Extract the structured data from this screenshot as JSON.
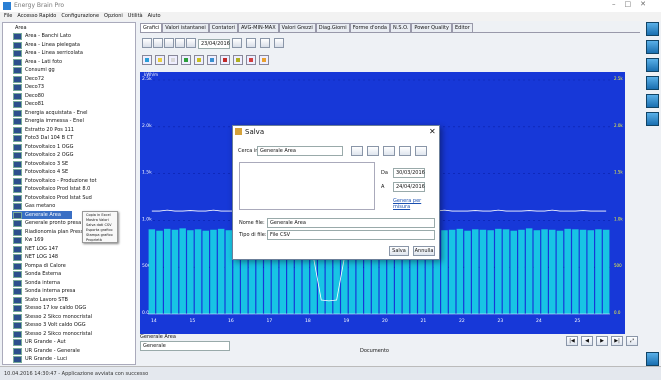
{
  "window": {
    "title": "Energy Brain Pro",
    "menu": [
      "File",
      "Accesso Rapido",
      "Configurazione",
      "Opzioni",
      "Utilità",
      "Aiuto"
    ]
  },
  "tree": {
    "root": "Area",
    "items": [
      "Area - Banchi Lato",
      "Area - Linea pielegata",
      "Area - Linea serricolata",
      "Area - Lati foto",
      "Consumi gg",
      "Deco72",
      "Deco73",
      "Deco80",
      "Deco81",
      "Energia acquistata - Enel",
      "Energia immessa - Enel",
      "Estratto 20 Pos 111",
      "Foto3 Dal 104 B CT",
      "Fotovoltaico 1 OGG",
      "Fotovoltaico 2 OGG",
      "Fotovoltaico 3 SE",
      "Fotovoltaico 4 SE",
      "Fotovoltaico - Produzione tot",
      "Fotovoltaico Prod Istat 8.0",
      "Fotovoltaico Prod Istat Sud",
      "Gas metano",
      "Generale Area",
      "Generale pronto presa",
      "Riadionomia plan Pressa",
      "Kw 169",
      "NET LOG 147",
      "NET LOG 148",
      "Pompa di Calore",
      "Sonda Esterna",
      "Sonda interna",
      "Sonda interna presa",
      "Stato Lavoro STB",
      "Stesso 17 kw caldo OGG",
      "Stesso 2 Sikco monocristal",
      "Stesso 3 Volt caldo OGG",
      "Stesso 2 Sikco monocristal",
      "UR Grande - Aut",
      "UR Grande - Generale",
      "UR Grande - Luci"
    ],
    "selected": "Generale Area"
  },
  "context_menu": [
    "Copia in Excel",
    "Mostra Valori",
    "Salva dati CSV",
    "Esporta grafico",
    "Stampa grafico",
    "Proprietà"
  ],
  "tabs": [
    "Grafici",
    "Valori istantanei",
    "Contatori",
    "AVG-MIN-MAX",
    "Valori Grezzi",
    "Diag.Giorni",
    "Forme d'onda",
    "N.S.O.",
    "Power Quality",
    "Editor"
  ],
  "toolbar": {
    "date": "23/04/2016"
  },
  "plot": {
    "unit": "kWh/m",
    "ylim": [
      0,
      2500
    ],
    "yticks": [
      {
        "value": 0,
        "label": "0.0"
      },
      {
        "value": 500,
        "label": "500"
      },
      {
        "value": 1000,
        "label": "1.0k"
      },
      {
        "value": 1500,
        "label": "1.5k"
      },
      {
        "value": 2000,
        "label": "2.0k"
      },
      {
        "value": 2500,
        "label": "2.5k"
      }
    ],
    "values": [
      905,
      890,
      910,
      900,
      915,
      895,
      905,
      890,
      900,
      910,
      895,
      905,
      900,
      890,
      910,
      905,
      895,
      900,
      910,
      890,
      905,
      900,
      880,
      870,
      895,
      905,
      910,
      900,
      890,
      905,
      915,
      900,
      895,
      905,
      890,
      910,
      900,
      905,
      895,
      900,
      910,
      890,
      905,
      900,
      895,
      910,
      905,
      890,
      900,
      915,
      895,
      905,
      900,
      890,
      910,
      905,
      900,
      895,
      905,
      900
    ],
    "line": [
      1100,
      1100,
      1110,
      1100,
      1100,
      1105,
      1100,
      1100,
      1110,
      1100,
      1100,
      1100,
      1105,
      1100,
      1100,
      1110,
      1100,
      1100,
      1100,
      1105,
      1100,
      600,
      150,
      140,
      150,
      600,
      1100,
      1100,
      1105,
      1100,
      1100,
      1110,
      1100,
      1100,
      1100,
      1105,
      1100,
      1100,
      1110,
      1100,
      1100,
      1100,
      1105,
      1100,
      1100,
      1110,
      1100,
      1100,
      1100,
      1105,
      1100,
      1100,
      1110,
      1100,
      1100,
      1100,
      1105,
      1100,
      1100,
      1100
    ],
    "xlabels": [
      "14",
      "15",
      "16",
      "17",
      "18",
      "19",
      "20",
      "21",
      "22",
      "23",
      "24",
      "25"
    ]
  },
  "footer": {
    "series_label": "Generale Area",
    "series_option": "Generale",
    "x_title": "Documento"
  },
  "status": "10.04.2016 14:30:47 - Applicazione avviata con successo",
  "dialog": {
    "title": "Salva",
    "look_in_label": "Cerca in:",
    "look_in": "Generale Area",
    "from_label": "Da",
    "from": "30/03/2016",
    "to_label": "A",
    "to": "24/04/2016",
    "link": "Genera per misura",
    "filename_label": "Nome file:",
    "filename": "Generale Area",
    "filetype_label": "Tipo di file:",
    "filetype": "File CSV",
    "save": "Salva",
    "cancel": "Annulla"
  }
}
